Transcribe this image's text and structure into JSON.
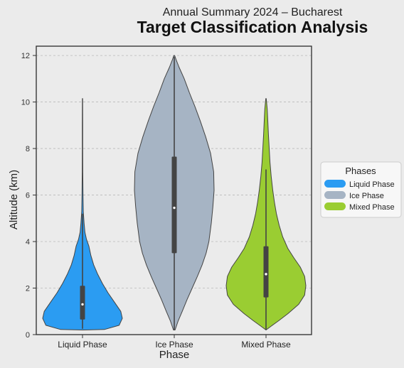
{
  "chart_data": {
    "type": "violin",
    "subtitle": "Annual Summary 2024 – Bucharest",
    "title": "Target Classification Analysis",
    "xlabel": "Phase",
    "ylabel": "Altitude (km)",
    "ylim": [
      0,
      12.4
    ],
    "yticks": [
      0,
      2,
      4,
      6,
      8,
      10,
      12
    ],
    "grid": "horizontal-dashed",
    "legend": {
      "title": "Phases",
      "placement": "right"
    },
    "categories": [
      "Liquid Phase",
      "Ice Phase",
      "Mixed Phase"
    ],
    "series": [
      {
        "name": "Liquid Phase",
        "color": "#2b9cf2",
        "whisker_low": 0.25,
        "q1": 0.65,
        "median": 1.3,
        "q3": 2.1,
        "whisker_high": 5.2,
        "min": 0.2,
        "max": 10.15,
        "density_profile": [
          [
            0.2,
            0.0
          ],
          [
            0.22,
            0.55
          ],
          [
            0.4,
            0.92
          ],
          [
            0.7,
            1.0
          ],
          [
            1.0,
            0.96
          ],
          [
            1.4,
            0.8
          ],
          [
            1.8,
            0.64
          ],
          [
            2.2,
            0.5
          ],
          [
            2.6,
            0.38
          ],
          [
            3.0,
            0.28
          ],
          [
            3.4,
            0.21
          ],
          [
            3.8,
            0.16
          ],
          [
            4.1,
            0.1
          ],
          [
            4.4,
            0.06
          ],
          [
            4.8,
            0.04
          ],
          [
            5.3,
            0.02
          ],
          [
            6.0,
            0.012
          ],
          [
            7.0,
            0.008
          ],
          [
            8.0,
            0.006
          ],
          [
            9.0,
            0.005
          ],
          [
            10.15,
            0.004
          ]
        ]
      },
      {
        "name": "Ice Phase",
        "color": "#a6b4c4",
        "whisker_low": 0.2,
        "q1": 3.5,
        "median": 5.45,
        "q3": 7.65,
        "whisker_high": 11.95,
        "min": 0.2,
        "max": 12.0,
        "density_profile": [
          [
            0.2,
            0.02
          ],
          [
            0.6,
            0.1
          ],
          [
            1.0,
            0.2
          ],
          [
            1.5,
            0.32
          ],
          [
            2.0,
            0.45
          ],
          [
            2.5,
            0.58
          ],
          [
            3.0,
            0.7
          ],
          [
            3.5,
            0.8
          ],
          [
            4.0,
            0.87
          ],
          [
            4.8,
            0.93
          ],
          [
            5.5,
            0.97
          ],
          [
            6.2,
            1.0
          ],
          [
            7.0,
            0.99
          ],
          [
            7.8,
            0.91
          ],
          [
            8.5,
            0.79
          ],
          [
            9.2,
            0.65
          ],
          [
            9.8,
            0.52
          ],
          [
            10.4,
            0.38
          ],
          [
            11.0,
            0.25
          ],
          [
            11.5,
            0.12
          ],
          [
            11.8,
            0.05
          ],
          [
            12.0,
            0.01
          ]
        ]
      },
      {
        "name": "Mixed Phase",
        "color": "#9acd32",
        "whisker_low": 0.2,
        "q1": 1.6,
        "median": 2.6,
        "q3": 3.8,
        "whisker_high": 7.1,
        "min": 0.2,
        "max": 10.15,
        "density_profile": [
          [
            0.2,
            0.0
          ],
          [
            0.35,
            0.12
          ],
          [
            0.6,
            0.32
          ],
          [
            0.9,
            0.55
          ],
          [
            1.3,
            0.82
          ],
          [
            1.7,
            0.97
          ],
          [
            2.1,
            1.0
          ],
          [
            2.5,
            0.97
          ],
          [
            2.9,
            0.86
          ],
          [
            3.3,
            0.7
          ],
          [
            3.7,
            0.55
          ],
          [
            4.2,
            0.42
          ],
          [
            4.7,
            0.33
          ],
          [
            5.2,
            0.26
          ],
          [
            5.7,
            0.21
          ],
          [
            6.2,
            0.17
          ],
          [
            6.8,
            0.13
          ],
          [
            7.4,
            0.1
          ],
          [
            8.0,
            0.08
          ],
          [
            8.6,
            0.06
          ],
          [
            9.2,
            0.045
          ],
          [
            9.7,
            0.03
          ],
          [
            10.15,
            0.005
          ]
        ]
      }
    ]
  }
}
